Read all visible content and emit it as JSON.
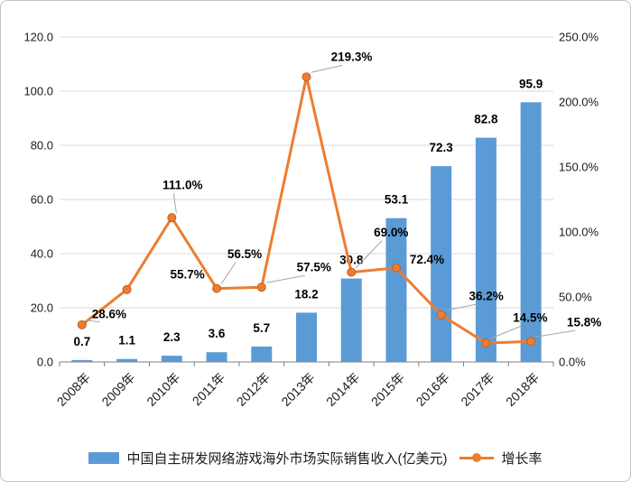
{
  "chart_data": {
    "type": "bar+line",
    "categories": [
      "2008年",
      "2009年",
      "2010年",
      "2011年",
      "2012年",
      "2013年",
      "2014年",
      "2015年",
      "2016年",
      "2017年",
      "2018年"
    ],
    "series": [
      {
        "name": "中国自主研发网络游戏海外市场实际销售收入(亿美元)",
        "type": "bar",
        "axis": "left",
        "color": "#5B9BD5",
        "values": [
          0.7,
          1.1,
          2.3,
          3.6,
          5.7,
          18.2,
          30.8,
          53.1,
          72.3,
          82.8,
          95.9
        ],
        "labels": [
          "0.7",
          "1.1",
          "2.3",
          "3.6",
          "5.7",
          "18.2",
          "30.8",
          "53.1",
          "72.3",
          "82.8",
          "95.9"
        ]
      },
      {
        "name": "增长率",
        "type": "line",
        "axis": "right",
        "color": "#ED7D31",
        "values": [
          28.6,
          55.7,
          111.0,
          56.5,
          57.5,
          219.3,
          69.0,
          72.4,
          36.2,
          14.5,
          15.8
        ],
        "labels": [
          "28.6%",
          "55.7%",
          "111.0%",
          "56.5%",
          "57.5%",
          "219.3%",
          "69.0%",
          "72.4%",
          "36.2%",
          "14.5%",
          "15.8%"
        ]
      }
    ],
    "left_axis": {
      "min": 0,
      "max": 120,
      "ticks": [
        "0.0",
        "20.0",
        "40.0",
        "60.0",
        "80.0",
        "100.0",
        "120.0"
      ]
    },
    "right_axis": {
      "min": 0,
      "max": 250,
      "ticks": [
        "0.0%",
        "50.0%",
        "100.0%",
        "150.0%",
        "200.0%",
        "250.0%"
      ]
    },
    "grid": true,
    "legend_position": "bottom",
    "colors": {
      "bar": "#5B9BD5",
      "line": "#ED7D31",
      "gridline": "#D9D9D9",
      "axis": "#7F7F7F",
      "label": "#000000"
    }
  }
}
